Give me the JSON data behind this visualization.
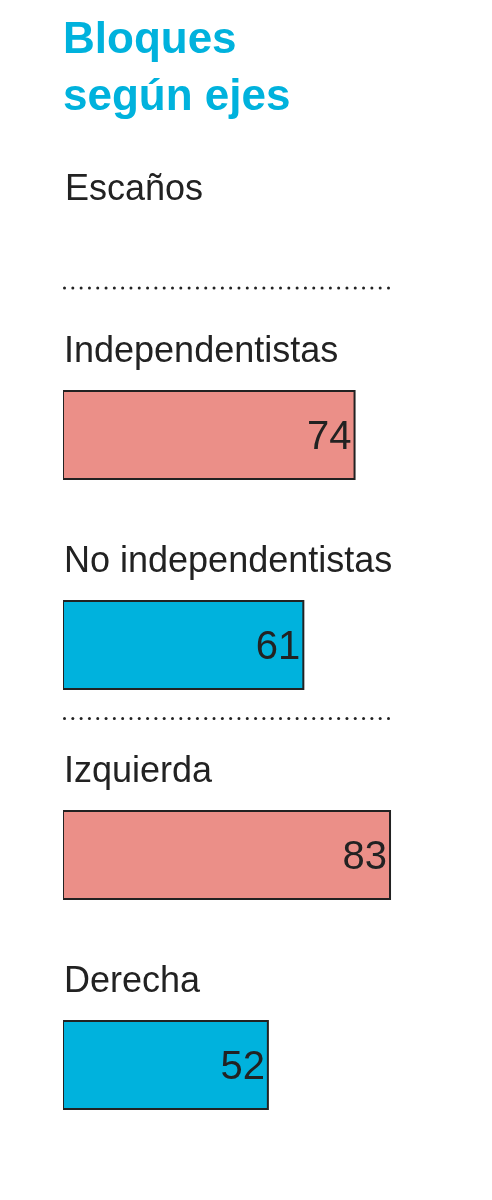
{
  "chart_data": {
    "type": "bar",
    "orientation": "horizontal",
    "title": "Bloques según ejes",
    "subtitle": "Escaños",
    "categories": [
      "Independentistas",
      "No independentistas",
      "Izquierda",
      "Derecha"
    ],
    "values": [
      74,
      61,
      83,
      52
    ],
    "colors": [
      "#eb8f88",
      "#00b2dd",
      "#eb8f88",
      "#00b2dd"
    ],
    "data_labels": true
  }
}
